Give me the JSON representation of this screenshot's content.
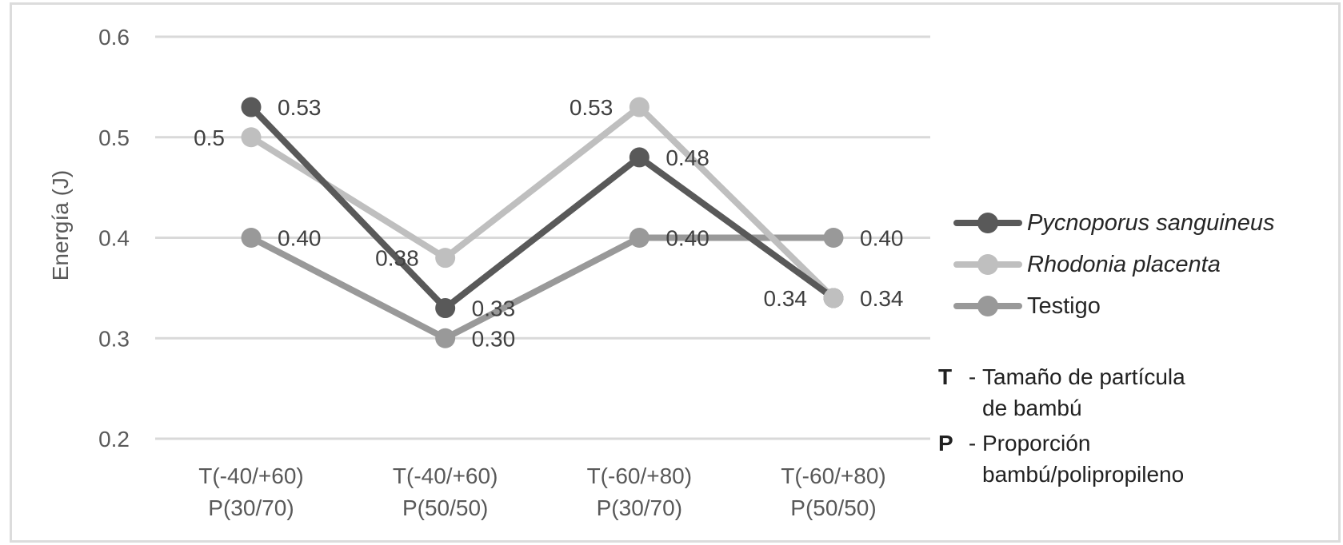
{
  "chart_data": {
    "type": "line",
    "title": "",
    "xlabel": "",
    "ylabel": "Energía (J)",
    "ylim": [
      0.2,
      0.6
    ],
    "yticks": [
      0.6,
      0.5,
      0.4,
      0.3,
      0.2
    ],
    "ytick_labels": [
      "0.6",
      "0.5",
      "0.4",
      "0.3",
      "0.2"
    ],
    "grid": true,
    "legend_position": "right",
    "categories": [
      [
        "T(-40/+60)",
        "P(30/70)"
      ],
      [
        "T(-40/+60)",
        "P(50/50)"
      ],
      [
        "T(-60/+80)",
        "P(30/70)"
      ],
      [
        "T(-60/+80)",
        "P(50/50)"
      ]
    ],
    "series": [
      {
        "name": "Pycnoporus sanguineus",
        "italic": true,
        "color": "#595959",
        "values": [
          0.53,
          0.33,
          0.48,
          0.34
        ],
        "point_labels": [
          "0.53",
          "0.33",
          "0.48",
          "0.34"
        ],
        "label_side": [
          "right",
          "right",
          "right",
          "left"
        ]
      },
      {
        "name": "Rhodonia placenta",
        "italic": true,
        "color": "#BFBFBF",
        "values": [
          0.5,
          0.38,
          0.53,
          0.34
        ],
        "point_labels": [
          "0.5",
          "0.38",
          "0.53",
          "0.34"
        ],
        "label_side": [
          "left",
          "left",
          "left",
          "right"
        ]
      },
      {
        "name": "Testigo",
        "italic": false,
        "color": "#999999",
        "values": [
          0.4,
          0.3,
          0.4,
          0.4
        ],
        "point_labels": [
          "0.40",
          "0.30",
          "0.40",
          "0.40"
        ],
        "label_side": [
          "right",
          "right",
          "right",
          "right"
        ]
      }
    ]
  },
  "notes": [
    {
      "term": "T",
      "sep": "-",
      "line1": "Tamaño de partícula",
      "line2": "de bambú"
    },
    {
      "term": "P",
      "sep": "-",
      "line1": "Proporción",
      "line2": "bambú/polipropileno"
    }
  ],
  "colors": {
    "gridline": "#D9D9D9",
    "axis_text": "#595959",
    "data_label_text": "#404040",
    "legend_text": "#262626",
    "frame_border": "#DCDCDC",
    "background": "#FFFFFF"
  }
}
